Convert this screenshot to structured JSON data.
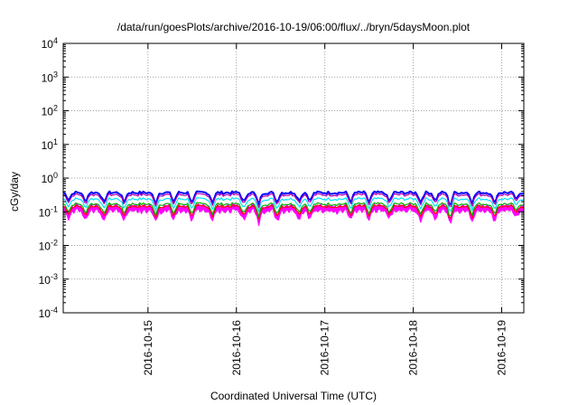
{
  "chart_data": {
    "type": "line",
    "title": "/data/run/goesPlots/archive/2016-10-19/06:00/flux/../bryn/5daysMoon.plot",
    "xlabel": "Coordinated Universal Time (UTC)",
    "ylabel": "cGy/day",
    "yscale": "log",
    "ylim": [
      0.0001,
      10000
    ],
    "xlim": [
      "2016-10-14T01:00",
      "2016-10-19T06:00"
    ],
    "grid": true,
    "legend": "none",
    "y_ticks": [
      {
        "value": 0.0001,
        "base": "10",
        "exp": "-4"
      },
      {
        "value": 0.001,
        "base": "10",
        "exp": "-3"
      },
      {
        "value": 0.01,
        "base": "10",
        "exp": "-2"
      },
      {
        "value": 0.1,
        "base": "10",
        "exp": "-1"
      },
      {
        "value": 1,
        "base": "10",
        "exp": "0"
      },
      {
        "value": 10,
        "base": "10",
        "exp": "1"
      },
      {
        "value": 100,
        "base": "10",
        "exp": "2"
      },
      {
        "value": 1000,
        "base": "10",
        "exp": "3"
      },
      {
        "value": 10000,
        "base": "10",
        "exp": "4"
      }
    ],
    "x_ticks": [
      {
        "value": "2016-10-15T00:00",
        "label": "2016-10-15"
      },
      {
        "value": "2016-10-16T00:00",
        "label": "2016-10-16"
      },
      {
        "value": "2016-10-17T00:00",
        "label": "2016-10-17"
      },
      {
        "value": "2016-10-18T00:00",
        "label": "2016-10-18"
      },
      {
        "value": "2016-10-19T00:00",
        "label": "2016-10-19"
      }
    ],
    "dips": [
      {
        "x": "2016-10-14T02:30",
        "depth": 0.4
      },
      {
        "x": "2016-10-14T07:00",
        "depth": 0.5
      },
      {
        "x": "2016-10-14T12:00",
        "depth": 0.55
      },
      {
        "x": "2016-10-14T17:30",
        "depth": 0.5
      },
      {
        "x": "2016-10-15T02:00",
        "depth": 0.55
      },
      {
        "x": "2016-10-15T07:00",
        "depth": 0.5
      },
      {
        "x": "2016-10-15T12:00",
        "depth": 0.55
      },
      {
        "x": "2016-10-15T17:30",
        "depth": 0.5
      },
      {
        "x": "2016-10-16T02:00",
        "depth": 0.55
      },
      {
        "x": "2016-10-16T06:00",
        "depth": 0.6
      },
      {
        "x": "2016-10-16T11:00",
        "depth": 0.5
      },
      {
        "x": "2016-10-16T17:00",
        "depth": 0.45
      },
      {
        "x": "2016-10-16T20:00",
        "depth": 0.45
      },
      {
        "x": "2016-10-17T07:00",
        "depth": 0.5
      },
      {
        "x": "2016-10-17T12:00",
        "depth": 0.5
      },
      {
        "x": "2016-10-17T17:30",
        "depth": 0.5
      },
      {
        "x": "2016-10-18T02:00",
        "depth": 0.5
      },
      {
        "x": "2016-10-18T06:00",
        "depth": 0.45
      },
      {
        "x": "2016-10-18T10:00",
        "depth": 0.65
      },
      {
        "x": "2016-10-18T16:00",
        "depth": 0.5
      },
      {
        "x": "2016-10-18T22:00",
        "depth": 0.55
      },
      {
        "x": "2016-10-19T04:00",
        "depth": 0.4
      }
    ],
    "series": [
      {
        "color": "#ff00ff",
        "level": 0.11,
        "fill": true
      },
      {
        "color": "#ff0000",
        "level": 0.145
      },
      {
        "color": "#00b000",
        "level": 0.17
      },
      {
        "color": "#00e0ff",
        "level": 0.24
      },
      {
        "color": "#0000ff",
        "level": 0.37,
        "width": 2
      },
      {
        "color": "#b000b0",
        "level": 0.32
      }
    ]
  }
}
